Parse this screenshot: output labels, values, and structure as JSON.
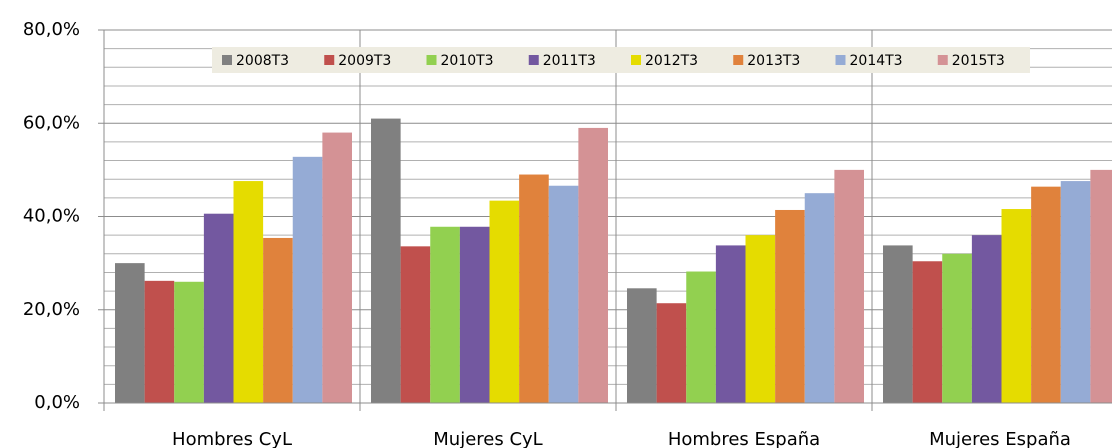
{
  "chart_data": {
    "type": "bar",
    "categories": [
      "Hombres CyL",
      "Mujeres CyL",
      "Hombres España",
      "Mujeres España"
    ],
    "series": [
      {
        "name": "2008T3",
        "color": "#808080",
        "values": [
          30,
          61,
          24.6,
          33.8
        ]
      },
      {
        "name": "2009T3",
        "color": "#c0504d",
        "values": [
          26.2,
          33.6,
          21.4,
          30.4
        ]
      },
      {
        "name": "2010T3",
        "color": "#92d050",
        "values": [
          26,
          37.8,
          28.2,
          32
        ]
      },
      {
        "name": "2011T3",
        "color": "#7358a0",
        "values": [
          40.6,
          37.8,
          33.8,
          36
        ]
      },
      {
        "name": "2012T3",
        "color": "#e5dc00",
        "values": [
          47.6,
          43.4,
          36,
          41.6
        ]
      },
      {
        "name": "2013T3",
        "color": "#e0823c",
        "values": [
          35.4,
          49,
          41.4,
          46.4
        ]
      },
      {
        "name": "2014T3",
        "color": "#95abd5",
        "values": [
          52.8,
          46.6,
          45,
          47.6
        ]
      },
      {
        "name": "2015T3",
        "color": "#d49295",
        "values": [
          58,
          59,
          50,
          50
        ]
      }
    ],
    "ylim": [
      0,
      80
    ],
    "yticks": [
      {
        "value": 0,
        "label": "0,0%"
      },
      {
        "value": 20,
        "label": "20,0%"
      },
      {
        "value": 40,
        "label": "40,0%"
      },
      {
        "value": 60,
        "label": "60,0%"
      },
      {
        "value": 80,
        "label": "80,0%"
      }
    ],
    "yticks_minor": [
      4,
      8,
      12,
      16,
      24,
      28,
      32,
      36,
      44,
      48,
      52,
      56,
      64,
      68,
      72,
      76
    ],
    "grid": true,
    "legend": "top"
  }
}
